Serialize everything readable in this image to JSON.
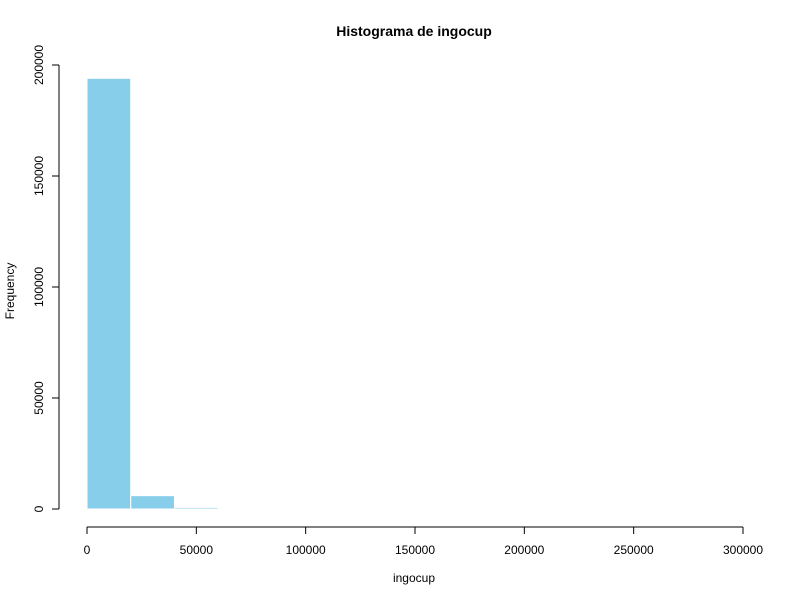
{
  "chart_data": {
    "type": "bar",
    "title": "Histograma de ingocup",
    "xlabel": "ingocup",
    "ylabel": "Frequency",
    "bins": [
      {
        "start": 0,
        "end": 20000,
        "count": 194000
      },
      {
        "start": 20000,
        "end": 40000,
        "count": 6000
      },
      {
        "start": 40000,
        "end": 60000,
        "count": 700
      },
      {
        "start": 60000,
        "end": 80000,
        "count": 80
      },
      {
        "start": 80000,
        "end": 100000,
        "count": 20
      },
      {
        "start": 100000,
        "end": 120000,
        "count": 10
      },
      {
        "start": 120000,
        "end": 140000,
        "count": 5
      },
      {
        "start": 140000,
        "end": 160000,
        "count": 3
      },
      {
        "start": 160000,
        "end": 180000,
        "count": 2
      },
      {
        "start": 180000,
        "end": 200000,
        "count": 2
      },
      {
        "start": 200000,
        "end": 220000,
        "count": 1
      },
      {
        "start": 220000,
        "end": 240000,
        "count": 1
      },
      {
        "start": 240000,
        "end": 260000,
        "count": 1
      },
      {
        "start": 260000,
        "end": 280000,
        "count": 1
      },
      {
        "start": 280000,
        "end": 300000,
        "count": 1
      }
    ],
    "xticks": [
      "0",
      "50000",
      "100000",
      "150000",
      "200000",
      "250000",
      "300000"
    ],
    "yticks": [
      "0",
      "50000",
      "100000",
      "150000",
      "200000"
    ],
    "xlim": [
      0,
      300000
    ],
    "ylim": [
      0,
      200000
    ],
    "bar_color": "#87CEEB",
    "grid": false
  }
}
